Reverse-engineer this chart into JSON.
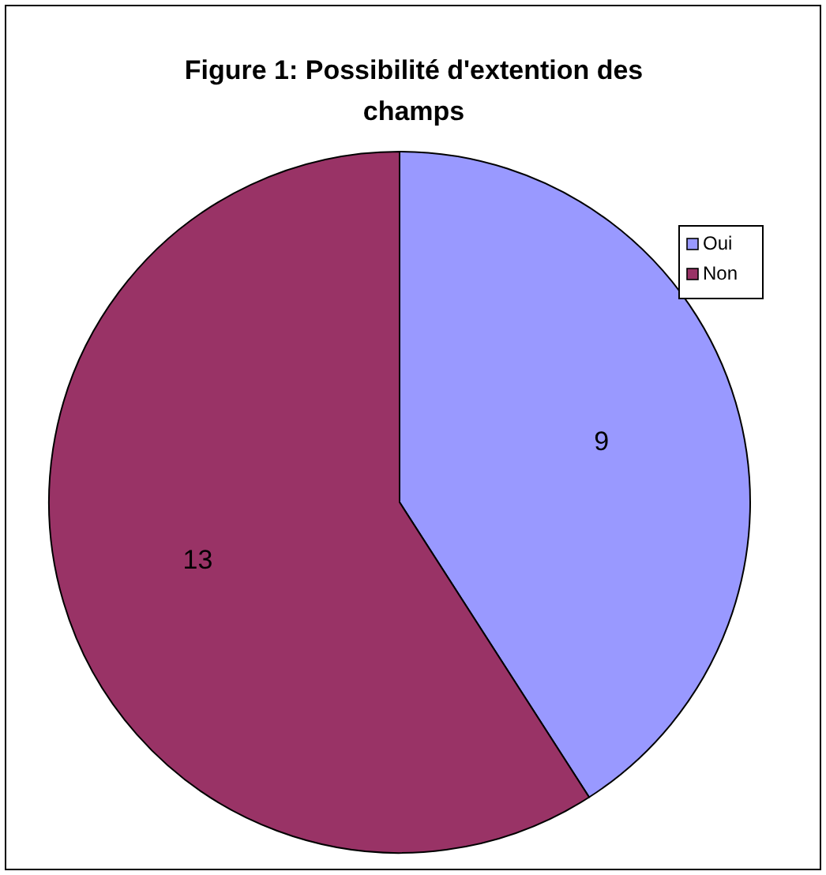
{
  "chart_data": {
    "type": "pie",
    "title": "Figure 1: Possibilité d'extention des champs",
    "categories": [
      "Oui",
      "Non"
    ],
    "values": [
      9,
      13
    ],
    "colors": [
      "#9999ff",
      "#993366"
    ],
    "data_labels": true,
    "legend": "top right"
  }
}
